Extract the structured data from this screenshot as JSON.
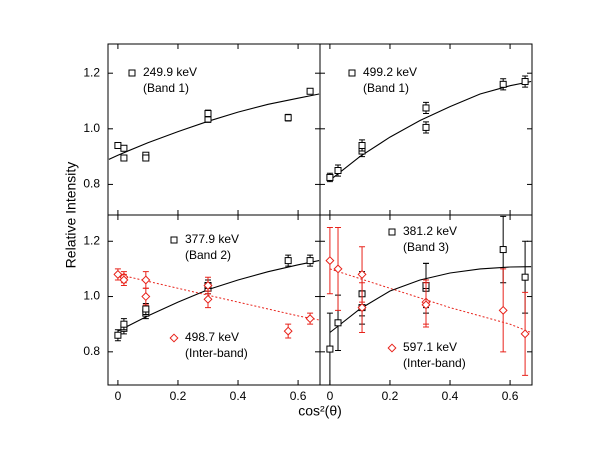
{
  "xlabel": "cos²(θ)",
  "ylabel": "Relative Intensity",
  "chart_data": [
    {
      "type": "scatter",
      "xlim": [
        -0.033,
        0.673
      ],
      "ylim": [
        0.69,
        1.305
      ],
      "xticks": [
        0,
        0.2,
        0.4,
        0.6
      ],
      "yticks": [
        0.8,
        {
          "value": 1,
          "label": "1.0"
        },
        1.2
      ],
      "series": [
        {
          "name": "249.9 keV",
          "band": "(Band 1)",
          "color": "#000000",
          "marker": "square",
          "line_style": "solid",
          "x": [
            0,
            0.02,
            0.02,
            0.093,
            0.093,
            0.3,
            0.3,
            0.567,
            0.64
          ],
          "values": [
            0.94,
            0.93,
            0.895,
            0.905,
            0.895,
            1.035,
            1.055,
            1.04,
            1.135
          ],
          "errors": [
            0.01,
            0.01,
            0.01,
            0.01,
            0.01,
            0.012,
            0.012,
            0.012,
            0.01
          ],
          "fit_x": [
            -0.03,
            0,
            0.1,
            0.2,
            0.3,
            0.4,
            0.5,
            0.6,
            0.67
          ],
          "fit_values": [
            0.89,
            0.905,
            0.95,
            0.99,
            1.027,
            1.06,
            1.088,
            1.11,
            1.125
          ]
        }
      ]
    },
    {
      "type": "scatter",
      "xlim": [
        -0.033,
        0.673
      ],
      "ylim": [
        0.69,
        1.305
      ],
      "xticks": [
        0,
        0.2,
        0.4,
        0.6
      ],
      "yticks": [
        0.8,
        {
          "value": 1,
          "label": "1.0"
        },
        1.2
      ],
      "series": [
        {
          "name": "499.2 keV",
          "band": "(Band 1)",
          "color": "#000000",
          "marker": "square",
          "line_style": "solid",
          "x": [
            0,
            0.027,
            0.107,
            0.107,
            0.32,
            0.32,
            0.577,
            0.65
          ],
          "values": [
            0.825,
            0.85,
            0.92,
            0.94,
            1.005,
            1.075,
            1.16,
            1.17
          ],
          "errors": [
            0.015,
            0.02,
            0.02,
            0.02,
            0.02,
            0.02,
            0.02,
            0.02
          ],
          "fit_x": [
            0,
            0.1,
            0.2,
            0.3,
            0.4,
            0.5,
            0.6,
            0.67
          ],
          "fit_values": [
            0.815,
            0.9,
            0.97,
            1.03,
            1.08,
            1.125,
            1.155,
            1.17
          ]
        }
      ]
    },
    {
      "type": "scatter",
      "xlim": [
        -0.033,
        0.673
      ],
      "ylim": [
        0.68,
        1.295
      ],
      "xticks": [
        0,
        0.2,
        0.4,
        0.6
      ],
      "yticks": [
        0.8,
        {
          "value": 1,
          "label": "1.0"
        },
        1.2
      ],
      "series": [
        {
          "name": "377.9 keV",
          "band": "(Band 2)",
          "color": "#000000",
          "marker": "square",
          "line_style": "solid",
          "x": [
            0,
            0.02,
            0.02,
            0.093,
            0.093,
            0.3,
            0.3,
            0.567,
            0.64
          ],
          "values": [
            0.86,
            0.885,
            0.9,
            0.94,
            0.955,
            1.03,
            1.04,
            1.13,
            1.13
          ],
          "errors": [
            0.02,
            0.02,
            0.02,
            0.02,
            0.02,
            0.02,
            0.02,
            0.02,
            0.02
          ],
          "fit_x": [
            0,
            0.1,
            0.2,
            0.3,
            0.4,
            0.5,
            0.6,
            0.67
          ],
          "fit_values": [
            0.875,
            0.93,
            0.98,
            1.025,
            1.06,
            1.09,
            1.115,
            1.13
          ]
        },
        {
          "name": "498.7 keV",
          "band": "(Inter-band)",
          "color": "#e8231b",
          "marker": "diamond",
          "line_style": "dotted",
          "x": [
            0,
            0.02,
            0.02,
            0.093,
            0.093,
            0.3,
            0.3,
            0.567,
            0.64
          ],
          "values": [
            1.08,
            1.07,
            1.06,
            1.06,
            1.0,
            0.99,
            1.04,
            0.875,
            0.92
          ],
          "errors": [
            0.02,
            0.02,
            0.02,
            0.03,
            0.03,
            0.03,
            0.03,
            0.025,
            0.02
          ],
          "fit_x": [
            0,
            0.1,
            0.2,
            0.3,
            0.4,
            0.5,
            0.6,
            0.67
          ],
          "fit_values": [
            1.08,
            1.055,
            1.03,
            1.005,
            0.98,
            0.955,
            0.93,
            0.915
          ]
        }
      ]
    },
    {
      "type": "scatter",
      "xlim": [
        -0.033,
        0.673
      ],
      "ylim": [
        0.68,
        1.295
      ],
      "xticks": [
        0,
        0.2,
        0.4,
        0.6
      ],
      "yticks": [
        0.8,
        {
          "value": 1,
          "label": "1.0"
        },
        1.2
      ],
      "series": [
        {
          "name": "381.2 keV",
          "band": "(Band 3)",
          "color": "#000000",
          "marker": "square",
          "line_style": "solid",
          "x": [
            0,
            0.027,
            0.107,
            0.107,
            0.32,
            0.32,
            0.577,
            0.65
          ],
          "values": [
            0.81,
            0.905,
            1.01,
            0.96,
            1.03,
            1.04,
            1.17,
            1.07
          ],
          "errors": [
            0.13,
            0.1,
            0.08,
            0.06,
            0.09,
            0.08,
            0.12,
            0.13
          ],
          "fit_x": [
            0,
            0.1,
            0.2,
            0.3,
            0.4,
            0.5,
            0.6,
            0.67
          ],
          "fit_values": [
            0.87,
            0.955,
            1.02,
            1.06,
            1.085,
            1.1,
            1.107,
            1.108
          ]
        },
        {
          "name": "597.1 keV",
          "band": "(Inter-band)",
          "color": "#e8231b",
          "marker": "diamond",
          "line_style": "dotted",
          "x": [
            0,
            0.027,
            0.107,
            0.107,
            0.32,
            0.32,
            0.577,
            0.65
          ],
          "values": [
            1.13,
            1.1,
            1.08,
            0.96,
            0.98,
            0.97,
            0.95,
            0.865
          ],
          "errors": [
            0.12,
            0.15,
            0.1,
            0.09,
            0.08,
            0.08,
            0.15,
            0.15
          ],
          "fit_x": [
            0,
            0.1,
            0.2,
            0.3,
            0.4,
            0.5,
            0.6,
            0.67
          ],
          "fit_values": [
            1.1,
            1.065,
            1.03,
            0.995,
            0.96,
            0.93,
            0.9,
            0.87
          ]
        }
      ]
    }
  ]
}
